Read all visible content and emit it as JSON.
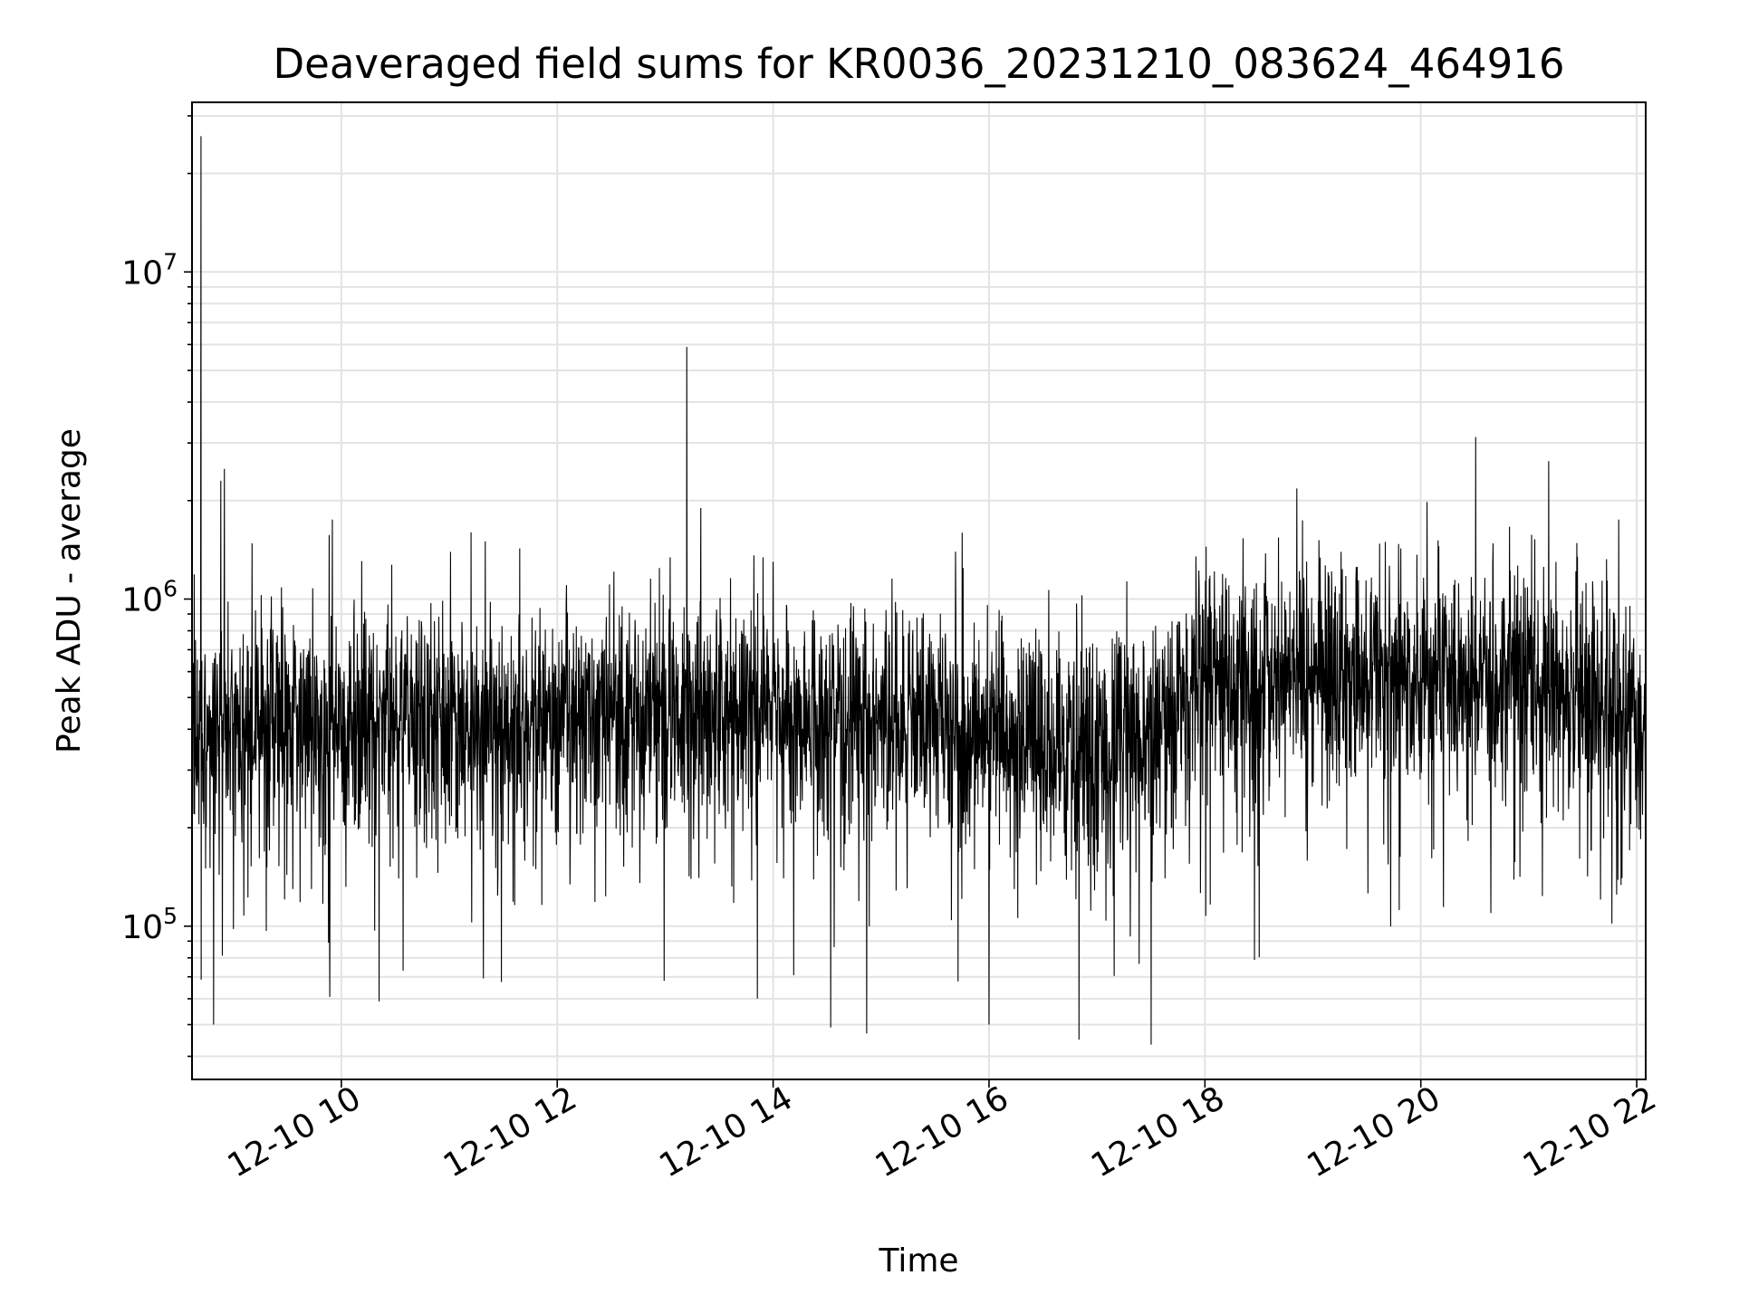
{
  "chart_data": {
    "type": "line",
    "title": "Deaveraged field sums for KR0036_20231210_083624_464916",
    "xlabel": "Time",
    "ylabel": "Peak ADU - average",
    "y_scale": "log",
    "x_range": [
      "2023-12-10 08:37",
      "2023-12-10 22:05"
    ],
    "ylim": [
      34000,
      33000000
    ],
    "grid": true,
    "legend": "none",
    "x_ticks": [
      "12-10 10",
      "12-10 12",
      "12-10 14",
      "12-10 16",
      "12-10 18",
      "12-10 20",
      "12-10 22"
    ],
    "y_ticks": [
      {
        "base": "10",
        "exp": "5",
        "value": 100000
      },
      {
        "base": "10",
        "exp": "6",
        "value": 1000000
      },
      {
        "base": "10",
        "exp": "7",
        "value": 10000000
      }
    ],
    "series": [
      {
        "color": "#000000",
        "baseline": [
          [
            "2023-12-10 08:37",
            380000
          ],
          [
            "2023-12-10 09:00",
            400000
          ],
          [
            "2023-12-10 10:00",
            400000
          ],
          [
            "2023-12-10 12:00",
            430000
          ],
          [
            "2023-12-10 14:00",
            440000
          ],
          [
            "2023-12-10 16:00",
            400000
          ],
          [
            "2023-12-10 17:00",
            330000
          ],
          [
            "2023-12-10 17:45",
            400000
          ],
          [
            "2023-12-10 17:55",
            600000
          ],
          [
            "2023-12-10 20:00",
            550000
          ],
          [
            "2023-12-10 21:00",
            580000
          ],
          [
            "2023-12-10 22:05",
            430000
          ]
        ],
        "peaks": [
          [
            "2023-12-10 08:42",
            26000000
          ],
          [
            "2023-12-10 08:55",
            2500000
          ],
          [
            "2023-12-10 08:53",
            2300000
          ],
          [
            "2023-12-10 09:55",
            1750000
          ],
          [
            "2023-12-10 11:20",
            1500000
          ],
          [
            "2023-12-10 13:12",
            5900000
          ],
          [
            "2023-12-10 14:00",
            1300000
          ],
          [
            "2023-12-10 17:55",
            1350000
          ],
          [
            "2023-12-10 20:10",
            1450000
          ],
          [
            "2023-12-10 21:50",
            1750000
          ]
        ],
        "troughs": [
          [
            "2023-12-10 08:49",
            50000
          ],
          [
            "2023-12-10 14:32",
            49000
          ],
          [
            "2023-12-10 14:52",
            47000
          ],
          [
            "2023-12-10 16:00",
            50000
          ],
          [
            "2023-12-10 16:50",
            45000
          ]
        ]
      }
    ]
  }
}
